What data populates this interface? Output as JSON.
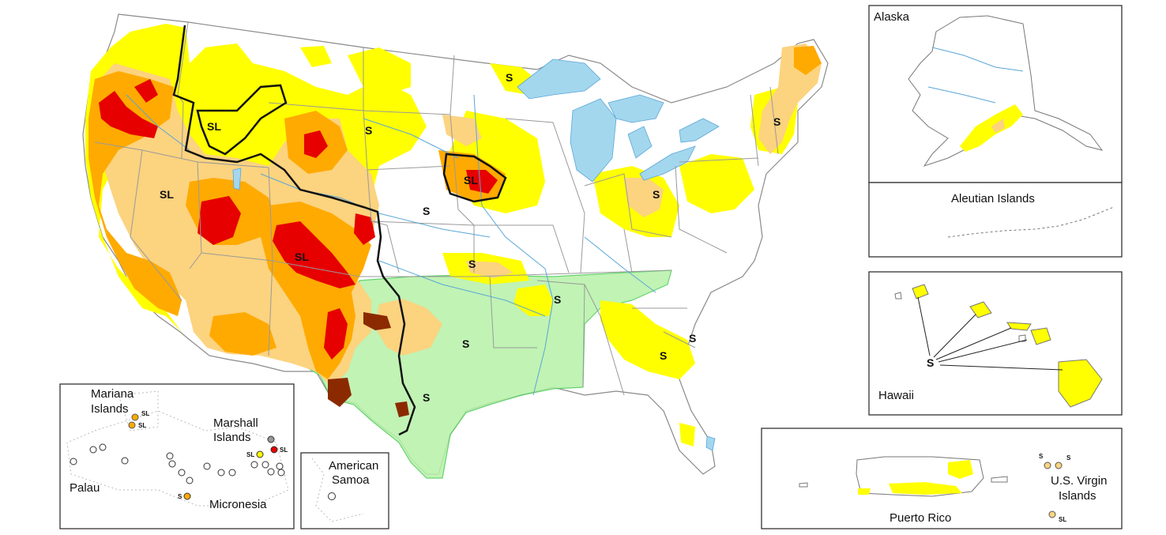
{
  "insets": {
    "alaska": "Alaska",
    "aleutian": "Aleutian Islands",
    "hawaii": "Hawaii",
    "puerto_rico": "Puerto Rico",
    "usvi_line1": "U.S. Virgin",
    "usvi_line2": "Islands",
    "american_samoa_line1": "American",
    "american_samoa_line2": "Samoa",
    "mariana_line1": "Mariana",
    "mariana_line2": "Islands",
    "marshall_line1": "Marshall",
    "marshall_line2": "Islands",
    "palau": "Palau",
    "micronesia": "Micronesia"
  },
  "impact_codes": {
    "short_term": "S",
    "long_term": "SL"
  },
  "colors": {
    "abnormally_dry": "#ffff00",
    "moderate": "#fcd37f",
    "severe": "#ffaa00",
    "extreme": "#e60000",
    "exceptional": "#730000",
    "improvement_overlay": "#99f299",
    "water": "#a3d7ee",
    "boundary": "#9a9a9a"
  }
}
